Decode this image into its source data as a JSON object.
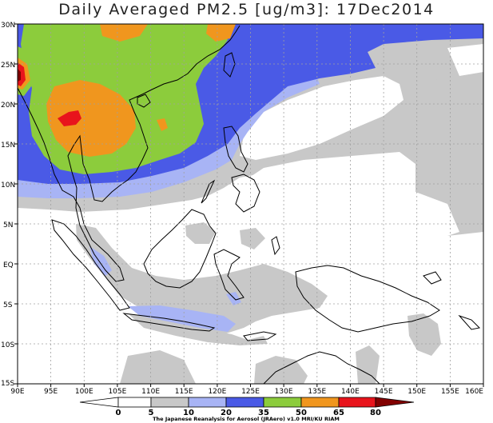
{
  "title": "Daily Averaged PM2.5 [ug/m3]: 17Dec2014",
  "x_ticks": [
    "90E",
    "95E",
    "100E",
    "105E",
    "110E",
    "115E",
    "120E",
    "125E",
    "130E",
    "135E",
    "140E",
    "145E",
    "150E",
    "155E",
    "160E"
  ],
  "y_ticks": [
    "30N",
    "25N",
    "20N",
    "15N",
    "10N",
    "5N",
    "EQ",
    "5S",
    "10S",
    "15S"
  ],
  "colorbar": {
    "labels": [
      "0",
      "5",
      "10",
      "20",
      "35",
      "50",
      "65",
      "80"
    ],
    "colors": [
      "#ffffff",
      "#ffffff",
      "#c8c8c8",
      "#a8b4f5",
      "#4a5ae6",
      "#8ccc3c",
      "#f0961e",
      "#e8141c",
      "#820000"
    ]
  },
  "credit": "The Japanese Reanalysis for Aerosol (JRAero) v1.0 MRI/KU RIAM",
  "colors": {
    "band_10_20": "#c8c8c8",
    "band_20_35": "#a8b4f5",
    "band_35_50": "#4a5ae6",
    "band_50_65": "#8ccc3c",
    "band_65_80": "#f0961e",
    "band_80": "#e8141c",
    "band_max": "#820000",
    "coast": "#000000",
    "grid": "#a0a0a0"
  }
}
